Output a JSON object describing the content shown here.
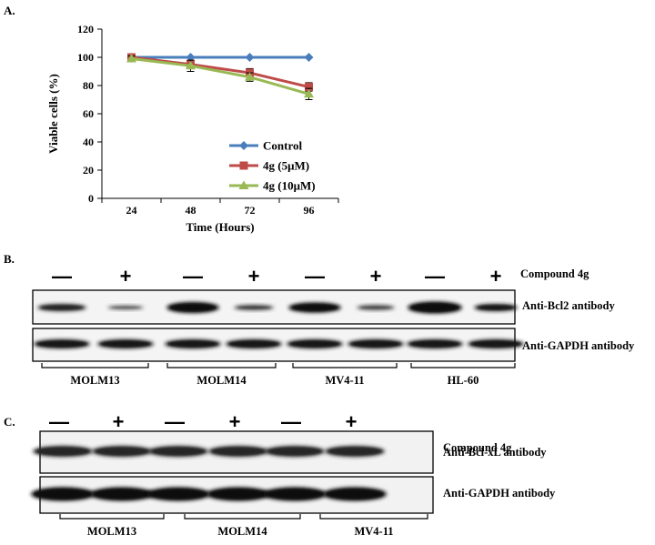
{
  "panels": {
    "a": "A.",
    "b": "B.",
    "c": "C."
  },
  "chart_data": {
    "type": "line",
    "title": "",
    "xlabel": "Time (Hours)",
    "ylabel": "Viable cells (%)",
    "categories": [
      "24",
      "48",
      "72",
      "96"
    ],
    "ylim": [
      0,
      120
    ],
    "yticks": [
      "0",
      "20",
      "40",
      "60",
      "80",
      "100",
      "120"
    ],
    "legend_position": "bottom-right",
    "grid": false,
    "series": [
      {
        "name": "Control",
        "values": [
          100,
          100,
          100,
          100
        ],
        "color": "#4a7ebb",
        "marker": "diamond"
      },
      {
        "name": "4g (5μM)",
        "values": [
          100,
          95,
          89,
          79
        ],
        "errors": [
          2,
          3,
          3,
          3
        ],
        "color": "#be4b48",
        "marker": "square"
      },
      {
        "name": "4g (10μM)",
        "values": [
          99,
          94,
          86,
          74
        ],
        "errors": [
          2,
          4,
          3,
          4
        ],
        "color": "#98b954",
        "marker": "triangle"
      }
    ]
  },
  "blot_b": {
    "signs": [
      "—",
      "+",
      "—",
      "+",
      "—",
      "+",
      "—",
      "+"
    ],
    "treatment_label": "Compound 4g",
    "row_labels": [
      "Anti-Bcl2 antibody",
      "Anti-GAPDH antibody"
    ],
    "cell_lines": [
      "MOLM13",
      "MOLM14",
      "MV4-11",
      "HL-60"
    ]
  },
  "blot_c": {
    "signs": [
      "—",
      "+",
      "—",
      "+",
      "—",
      "+"
    ],
    "treatment_label": "Compound 4g",
    "row_labels": [
      "Anti-Bcl-xL antibody",
      "Anti-GAPDH antibody"
    ],
    "cell_lines": [
      "MOLM13",
      "MOLM14",
      "MV4-11"
    ]
  }
}
